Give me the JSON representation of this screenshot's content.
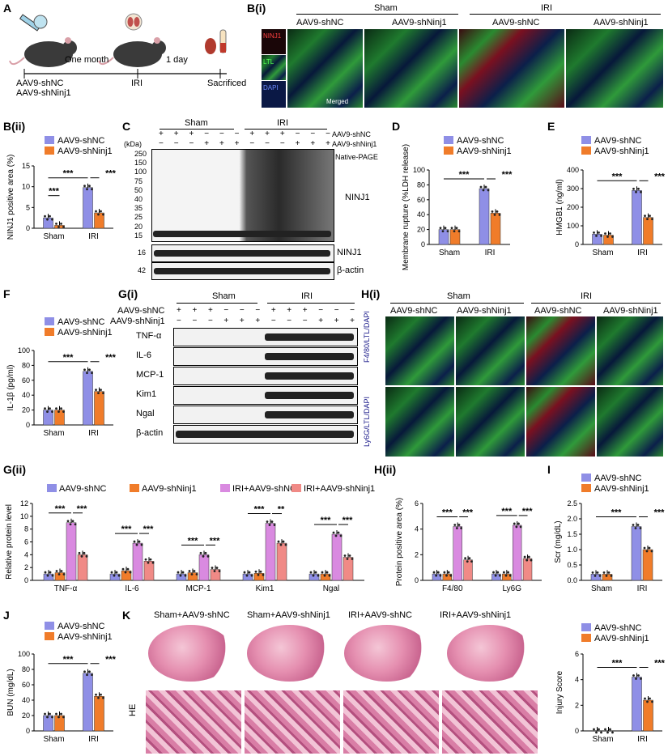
{
  "panels": {
    "A": "A",
    "Bi": "B(i)",
    "Bii": "B(ii)",
    "C": "C",
    "D": "D",
    "E": "E",
    "F": "F",
    "Gi": "G(i)",
    "Hi": "H(i)",
    "Gii": "G(ii)",
    "Hii": "H(ii)",
    "I": "I",
    "J": "J",
    "K": "K"
  },
  "schematic": {
    "one_month": "One month",
    "one_day": "1 day",
    "start_line1": "AAV9-shNC",
    "start_line2": "AAV9-shNinj1",
    "iri": "IRI",
    "sacrificed": "Sacrificed"
  },
  "groups": {
    "sham": "Sham",
    "iri": "IRI",
    "shnc": "AAV9-shNC",
    "shninj1": "AAV9-shNinj1"
  },
  "micro_b": {
    "channels": [
      "NINJ1",
      "LTL",
      "DAPI"
    ],
    "merged": "Merged"
  },
  "micro_h": {
    "row1": "F4/80/LTL/DAPI",
    "row2": "Ly6G/LTL/DAPI"
  },
  "blot_c": {
    "kda": "(kDa)",
    "markers": [
      "250",
      "150",
      "100",
      "75",
      "50",
      "40",
      "35",
      "25",
      "20",
      "15"
    ],
    "native": "Native-PAGE",
    "ninj1": "NINJ1",
    "actin": "β-actin",
    "markers2": [
      "16",
      "42"
    ],
    "row_shnc": [
      "+",
      "+",
      "+",
      "−",
      "−",
      "−",
      "+",
      "+",
      "+",
      "−",
      "−",
      "−"
    ],
    "row_shninj1": [
      "−",
      "−",
      "−",
      "+",
      "+",
      "+",
      "−",
      "−",
      "−",
      "+",
      "+",
      "+"
    ],
    "lbl_shnc": "AAV9-shNC",
    "lbl_shninj1": "AAV9-shNinj1"
  },
  "blot_g": {
    "lbl_shnc": "AAV9-shNC",
    "lbl_shninj1": "AAV9-shNinj1",
    "rows": [
      "TNF-α",
      "IL-6",
      "MCP-1",
      "Kim1",
      "Ngal",
      "β-actin"
    ],
    "row_shnc": [
      "+",
      "+",
      "+",
      "−",
      "−",
      "−",
      "+",
      "+",
      "+",
      "−",
      "−",
      "−"
    ],
    "row_shninj1": [
      "−",
      "−",
      "−",
      "+",
      "+",
      "+",
      "−",
      "−",
      "−",
      "+",
      "+",
      "+"
    ]
  },
  "legend_4": [
    "AAV9-shNC",
    "AAV9-shNinj1",
    "IRI+AAV9-shNC",
    "IRI+AAV9-shNinj1"
  ],
  "he": {
    "titles": [
      "Sham+AAV9-shNC",
      "Sham+AAV9-shNinj1",
      "IRI+AAV9-shNC",
      "IRI+AAV9-shNinj1"
    ],
    "stain": "HE"
  },
  "colors": {
    "shnc": "#8f8fe6",
    "shninj1": "#f07c2a",
    "iri_shnc": "#d98ae0",
    "iri_shninj1": "#f08a86"
  },
  "chart_data": [
    {
      "id": "Bii",
      "type": "bar",
      "ylabel": "NINJ1 positive area (%)",
      "ylim": [
        0,
        15
      ],
      "yticks": [
        0,
        5,
        10,
        15
      ],
      "categories": [
        "Sham",
        "IRI"
      ],
      "series": [
        {
          "name": "AAV9-shNC",
          "values": [
            2.5,
            9.8
          ]
        },
        {
          "name": "AAV9-shNinj1",
          "values": [
            0.7,
            3.7
          ]
        }
      ],
      "sig": [
        "***",
        "***",
        "***"
      ]
    },
    {
      "id": "D",
      "type": "bar",
      "ylabel": "Membrane rupture (%LDH release)",
      "ylim": [
        0,
        100
      ],
      "yticks": [
        0,
        20,
        40,
        60,
        80,
        100
      ],
      "categories": [
        "Sham",
        "IRI"
      ],
      "series": [
        {
          "name": "AAV9-shNC",
          "values": [
            20,
            75
          ]
        },
        {
          "name": "AAV9-shNinj1",
          "values": [
            20,
            42
          ]
        }
      ],
      "sig": [
        "***",
        "***"
      ]
    },
    {
      "id": "E",
      "type": "bar",
      "ylabel": "HMGB1 (ng/ml)",
      "ylim": [
        0,
        400
      ],
      "yticks": [
        0,
        100,
        200,
        300,
        400
      ],
      "categories": [
        "Sham",
        "IRI"
      ],
      "series": [
        {
          "name": "AAV9-shNC",
          "values": [
            55,
            290
          ]
        },
        {
          "name": "AAV9-shNinj1",
          "values": [
            50,
            145
          ]
        }
      ],
      "sig": [
        "***",
        "***"
      ]
    },
    {
      "id": "F",
      "type": "bar",
      "ylabel": "IL-1β (pg/ml)",
      "ylim": [
        0,
        100
      ],
      "yticks": [
        0,
        20,
        40,
        60,
        80,
        100
      ],
      "categories": [
        "Sham",
        "IRI"
      ],
      "series": [
        {
          "name": "AAV9-shNC",
          "values": [
            20,
            72
          ]
        },
        {
          "name": "AAV9-shNinj1",
          "values": [
            20,
            45
          ]
        }
      ],
      "sig": [
        "***",
        "***"
      ]
    },
    {
      "id": "Gii",
      "type": "bar",
      "ylabel": "Relative protein level",
      "ylim": [
        0,
        12
      ],
      "yticks": [
        0,
        2,
        4,
        6,
        8,
        10,
        12
      ],
      "categories": [
        "TNF-α",
        "IL-6",
        "MCP-1",
        "Kim1",
        "Ngal"
      ],
      "series": [
        {
          "name": "AAV9-shNC",
          "values": [
            1,
            1,
            1,
            1,
            1
          ]
        },
        {
          "name": "AAV9-shNinj1",
          "values": [
            1.2,
            1.5,
            1.2,
            1.1,
            1.0
          ]
        },
        {
          "name": "IRI+AAV9-shNC",
          "values": [
            9,
            5.8,
            4,
            8.9,
            7.2
          ]
        },
        {
          "name": "IRI+AAV9-shNinj1",
          "values": [
            4,
            3,
            1.7,
            5.8,
            3.6
          ]
        }
      ],
      "sig": [
        [
          "***",
          "***"
        ],
        [
          "***",
          "***"
        ],
        [
          "***",
          "***"
        ],
        [
          "***",
          "**"
        ],
        [
          "***",
          "***"
        ]
      ]
    },
    {
      "id": "Hii",
      "type": "bar",
      "ylabel": "Protein positive area (%)",
      "ylim": [
        0,
        6
      ],
      "yticks": [
        0,
        2,
        4,
        6
      ],
      "categories": [
        "F4/80",
        "Ly6G"
      ],
      "series": [
        {
          "name": "AAV9-shNC",
          "values": [
            0.5,
            0.5
          ]
        },
        {
          "name": "AAV9-shNinj1",
          "values": [
            0.5,
            0.5
          ]
        },
        {
          "name": "IRI+AAV9-shNC",
          "values": [
            4.2,
            4.3
          ]
        },
        {
          "name": "IRI+AAV9-shNinj1",
          "values": [
            1.6,
            1.7
          ]
        }
      ],
      "sig": [
        [
          "***",
          "***"
        ],
        [
          "***",
          "***"
        ]
      ]
    },
    {
      "id": "I",
      "type": "bar",
      "ylabel": "Scr (mg/dL)",
      "ylim": [
        0,
        2.5
      ],
      "yticks": [
        0.0,
        0.5,
        1.0,
        1.5,
        2.0,
        2.5
      ],
      "categories": [
        "Sham",
        "IRI"
      ],
      "series": [
        {
          "name": "AAV9-shNC",
          "values": [
            0.2,
            1.75
          ]
        },
        {
          "name": "AAV9-shNinj1",
          "values": [
            0.2,
            1.0
          ]
        }
      ],
      "sig": [
        "***",
        "***"
      ]
    },
    {
      "id": "J",
      "type": "bar",
      "ylabel": "BUN (mg/dL)",
      "ylim": [
        0,
        100
      ],
      "yticks": [
        0,
        20,
        40,
        60,
        80,
        100
      ],
      "categories": [
        "Sham",
        "IRI"
      ],
      "series": [
        {
          "name": "AAV9-shNC",
          "values": [
            20,
            75
          ]
        },
        {
          "name": "AAV9-shNinj1",
          "values": [
            20,
            45
          ]
        }
      ],
      "sig": [
        "***",
        "***"
      ]
    },
    {
      "id": "K",
      "type": "bar",
      "ylabel": "Injury Score",
      "ylim": [
        0,
        6
      ],
      "yticks": [
        0,
        2,
        4,
        6
      ],
      "categories": [
        "Sham",
        "IRI"
      ],
      "series": [
        {
          "name": "AAV9-shNC",
          "values": [
            0,
            4.2
          ]
        },
        {
          "name": "AAV9-shNinj1",
          "values": [
            0,
            2.4
          ]
        }
      ],
      "sig": [
        "***",
        "***"
      ]
    }
  ]
}
